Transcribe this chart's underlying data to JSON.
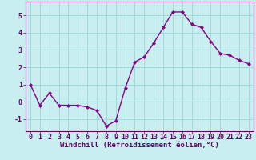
{
  "x": [
    0,
    1,
    2,
    3,
    4,
    5,
    6,
    7,
    8,
    9,
    10,
    11,
    12,
    13,
    14,
    15,
    16,
    17,
    18,
    19,
    20,
    21,
    22,
    23
  ],
  "y": [
    1.0,
    -0.2,
    0.5,
    -0.2,
    -0.2,
    -0.2,
    -0.3,
    -0.5,
    -1.4,
    -1.1,
    0.8,
    2.3,
    2.6,
    3.4,
    4.3,
    5.2,
    5.2,
    4.5,
    4.3,
    3.5,
    2.8,
    2.7,
    2.4,
    2.2
  ],
  "line_color": "#880088",
  "marker": "D",
  "marker_size": 2.0,
  "bg_color": "#c8eef0",
  "grid_color": "#a0d8dc",
  "xlabel": "Windchill (Refroidissement éolien,°C)",
  "ylim": [
    -1.7,
    5.8
  ],
  "xlim": [
    -0.5,
    23.5
  ],
  "yticks": [
    -1,
    0,
    1,
    2,
    3,
    4,
    5
  ],
  "xticks": [
    0,
    1,
    2,
    3,
    4,
    5,
    6,
    7,
    8,
    9,
    10,
    11,
    12,
    13,
    14,
    15,
    16,
    17,
    18,
    19,
    20,
    21,
    22,
    23
  ],
  "label_fontsize": 6.5,
  "tick_fontsize": 6.0,
  "spine_color": "#660066",
  "linewidth": 1.0
}
